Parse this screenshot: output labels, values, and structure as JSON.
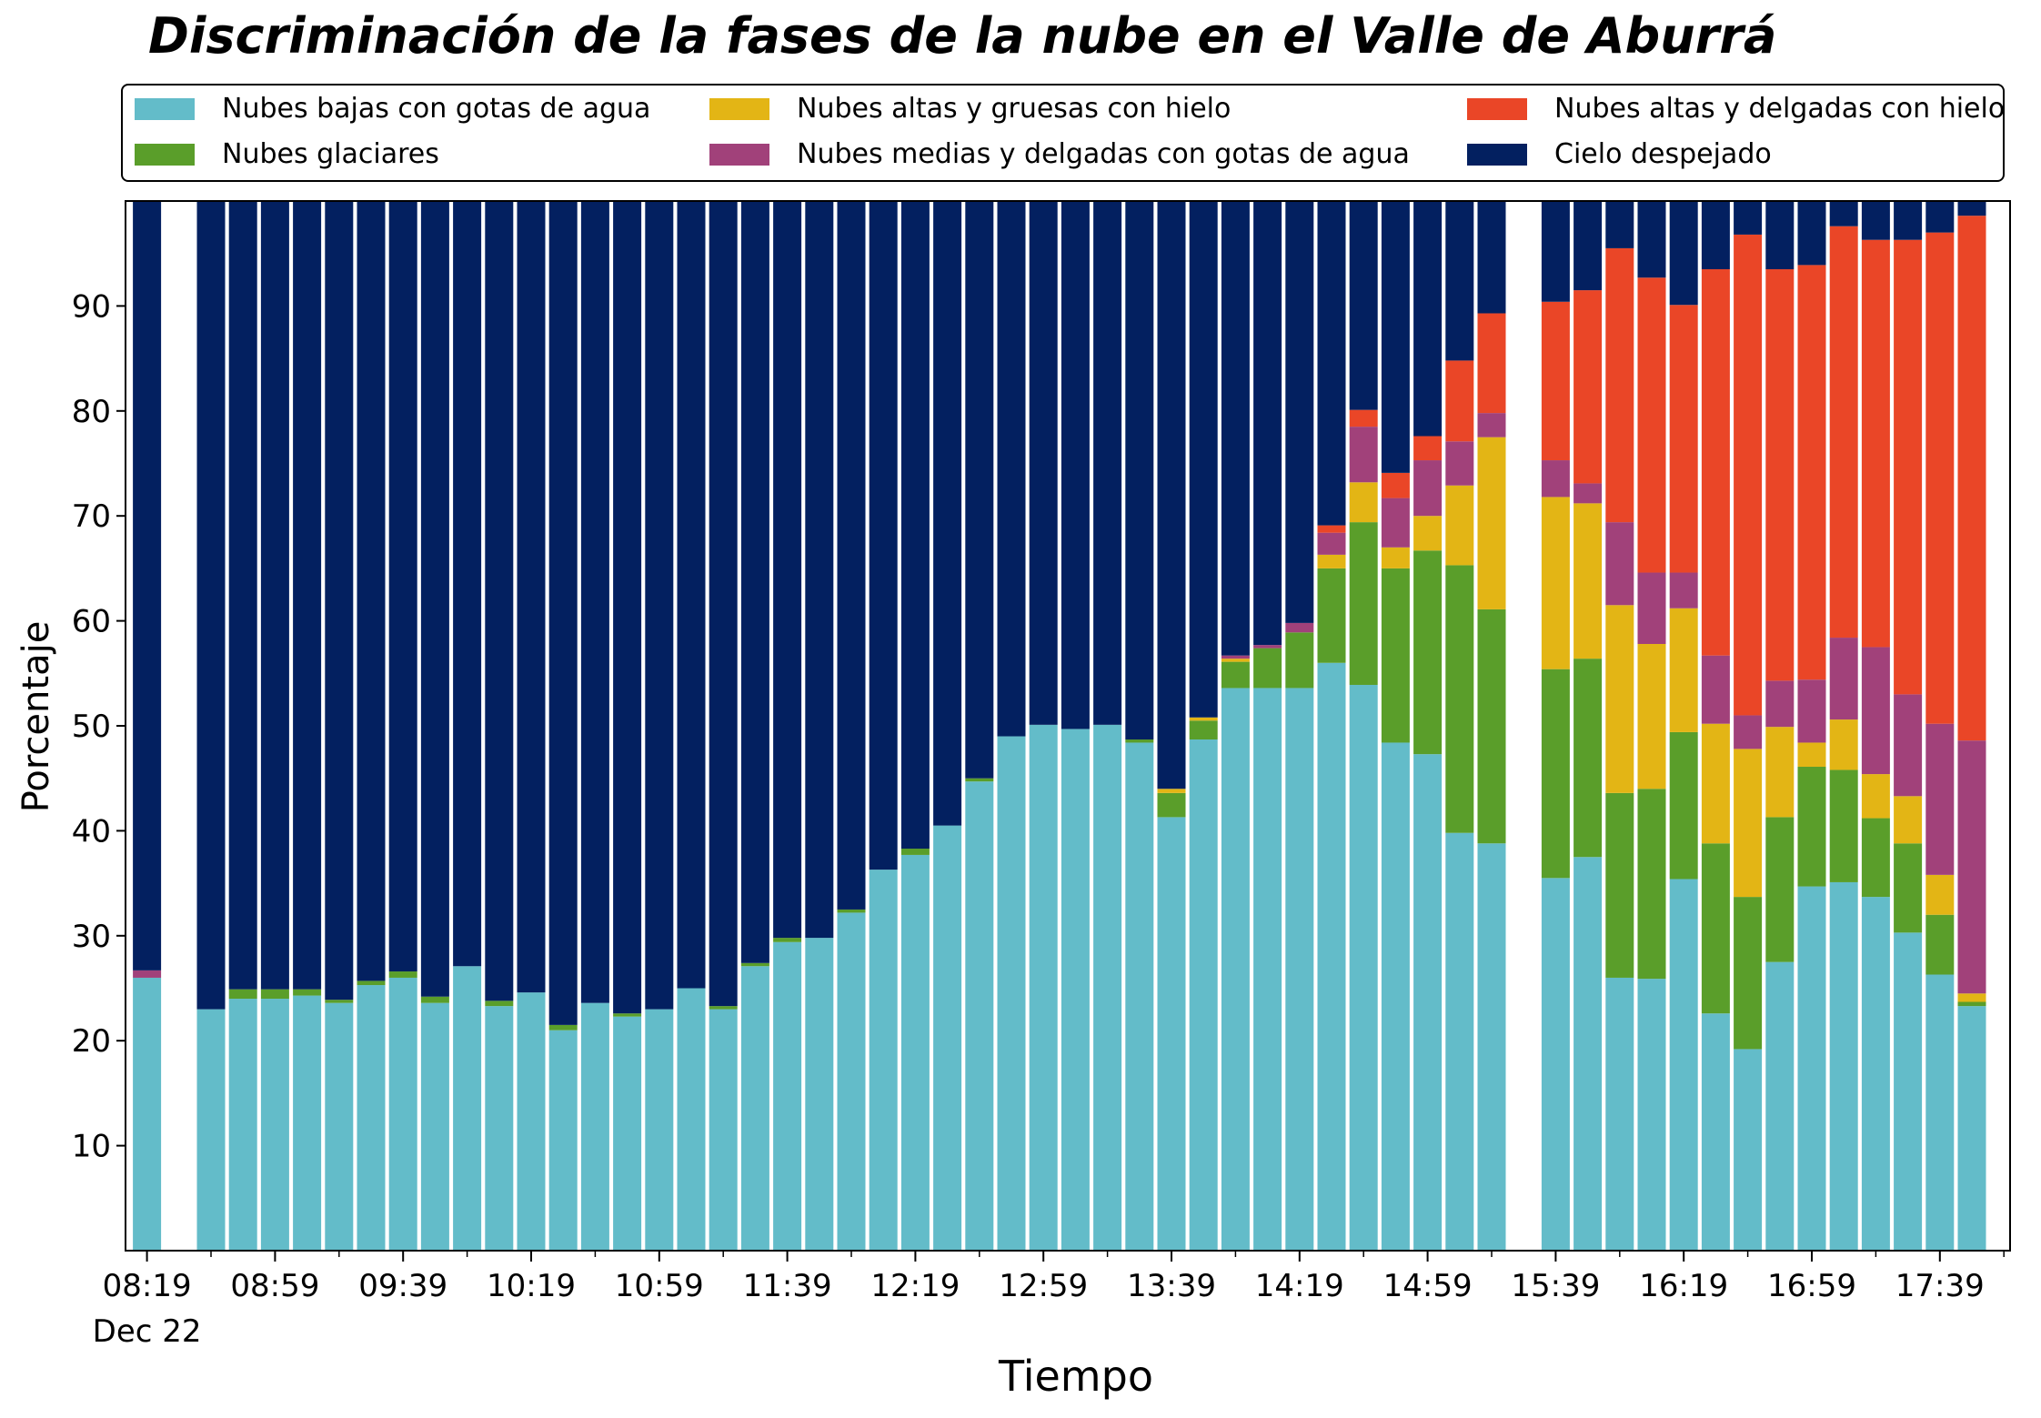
{
  "chart_data": {
    "type": "bar",
    "stacked": true,
    "title": "Discriminación de la fases de la nube en el Valle de Aburrá",
    "xlabel": "Tiempo",
    "ylabel": "Porcentaje",
    "ylim": [
      0,
      100
    ],
    "yticks": [
      10,
      20,
      30,
      40,
      50,
      60,
      70,
      80,
      90
    ],
    "grid": false,
    "legend_position": "top",
    "x_interval_minutes": 10,
    "x_ticks": [
      {
        "time": "08:19",
        "label": "08:19",
        "sublabel": "Dec 22"
      },
      {
        "time": "08:59",
        "label": "08:59"
      },
      {
        "time": "09:39",
        "label": "09:39"
      },
      {
        "time": "10:19",
        "label": "10:19"
      },
      {
        "time": "10:59",
        "label": "10:59"
      },
      {
        "time": "11:39",
        "label": "11:39"
      },
      {
        "time": "12:19",
        "label": "12:19"
      },
      {
        "time": "12:59",
        "label": "12:59"
      },
      {
        "time": "13:39",
        "label": "13:39"
      },
      {
        "time": "14:19",
        "label": "14:19"
      },
      {
        "time": "14:59",
        "label": "14:59"
      },
      {
        "time": "15:39",
        "label": "15:39"
      },
      {
        "time": "16:19",
        "label": "16:19"
      },
      {
        "time": "16:59",
        "label": "16:59"
      },
      {
        "time": "17:39",
        "label": "17:39"
      }
    ],
    "x": [
      "08:19",
      "08:29",
      "08:39",
      "08:49",
      "08:59",
      "09:09",
      "09:19",
      "09:29",
      "09:39",
      "09:49",
      "09:59",
      "10:09",
      "10:19",
      "10:29",
      "10:39",
      "10:49",
      "10:59",
      "11:09",
      "11:19",
      "11:29",
      "11:39",
      "11:49",
      "11:59",
      "12:09",
      "12:19",
      "12:29",
      "12:39",
      "12:49",
      "12:59",
      "13:09",
      "13:19",
      "13:29",
      "13:39",
      "13:49",
      "13:59",
      "14:09",
      "14:19",
      "14:29",
      "14:39",
      "14:49",
      "14:59",
      "15:09",
      "15:19",
      "15:29",
      "15:39",
      "15:49",
      "15:59",
      "16:09",
      "16:19",
      "16:29",
      "16:39",
      "16:49",
      "16:59",
      "17:09",
      "17:19",
      "17:29",
      "17:39",
      "17:49"
    ],
    "series": [
      {
        "name": "Nubes bajas con gotas de agua",
        "color": "#63bcc9",
        "values": [
          26.0,
          null,
          23.0,
          24.0,
          24.0,
          24.3,
          23.6,
          25.3,
          26.0,
          23.6,
          27.1,
          23.3,
          24.6,
          21.0,
          23.6,
          22.3,
          23.0,
          25.0,
          23.0,
          27.1,
          29.4,
          29.8,
          32.2,
          36.3,
          37.7,
          40.5,
          44.7,
          49.0,
          50.1,
          49.7,
          50.1,
          48.4,
          41.3,
          48.7,
          53.6,
          53.6,
          53.6,
          56.0,
          53.9,
          48.4,
          47.3,
          39.8,
          38.8,
          null,
          35.5,
          37.5,
          26.0,
          25.9,
          35.4,
          22.6,
          19.2,
          27.5,
          34.7,
          35.1,
          33.7,
          30.3,
          26.3,
          23.3
        ]
      },
      {
        "name": "Nubes glaciares",
        "color": "#5a9e2a",
        "values": [
          0,
          null,
          0,
          0.9,
          0.9,
          0.6,
          0.3,
          0.4,
          0.6,
          0.6,
          0,
          0.5,
          0,
          0.5,
          0,
          0.3,
          0,
          0,
          0.3,
          0.3,
          0.4,
          0,
          0.3,
          0,
          0.6,
          0,
          0.3,
          0,
          0,
          0,
          0,
          0.3,
          2.3,
          1.8,
          2.5,
          3.8,
          5.3,
          9.0,
          15.5,
          16.6,
          19.4,
          25.5,
          22.3,
          null,
          19.9,
          18.9,
          17.6,
          18.1,
          14.0,
          16.2,
          14.5,
          13.8,
          11.4,
          10.7,
          7.5,
          8.5,
          5.7,
          0.4
        ]
      },
      {
        "name": "Nubes altas y gruesas con hielo",
        "color": "#e3b515",
        "values": [
          0,
          null,
          0,
          0,
          0,
          0,
          0,
          0,
          0,
          0,
          0,
          0,
          0,
          0,
          0,
          0,
          0,
          0,
          0,
          0,
          0,
          0,
          0,
          0,
          0,
          0,
          0,
          0,
          0,
          0,
          0,
          0,
          0.4,
          0.3,
          0.3,
          0,
          0,
          1.3,
          3.8,
          2.0,
          3.3,
          7.6,
          16.4,
          null,
          16.4,
          14.8,
          17.9,
          13.8,
          11.8,
          11.4,
          14.1,
          8.6,
          2.3,
          4.8,
          4.2,
          4.5,
          3.8,
          0.8
        ]
      },
      {
        "name": "Nubes medias y delgadas con gotas de agua",
        "color": "#a1417a",
        "values": [
          0.7,
          null,
          0,
          0,
          0,
          0,
          0,
          0,
          0,
          0,
          0,
          0,
          0,
          0,
          0,
          0,
          0,
          0,
          0,
          0,
          0,
          0,
          0,
          0,
          0,
          0,
          0,
          0,
          0,
          0,
          0,
          0,
          0,
          0,
          0.3,
          0.3,
          0.9,
          2.1,
          5.3,
          4.7,
          5.3,
          4.2,
          2.3,
          null,
          3.5,
          1.9,
          7.9,
          6.8,
          3.4,
          6.5,
          3.2,
          4.4,
          6.0,
          7.8,
          12.1,
          9.7,
          14.4,
          24.1
        ]
      },
      {
        "name": "Nubes altas y delgadas con hielo",
        "color": "#ea4627",
        "values": [
          0,
          null,
          0,
          0,
          0,
          0,
          0,
          0,
          0,
          0,
          0,
          0,
          0,
          0,
          0,
          0,
          0,
          0,
          0,
          0,
          0,
          0,
          0,
          0,
          0,
          0,
          0,
          0,
          0,
          0,
          0,
          0,
          0,
          0,
          0,
          0,
          0,
          0.7,
          1.6,
          2.4,
          2.3,
          7.7,
          9.5,
          null,
          15.1,
          18.4,
          26.1,
          28.1,
          25.5,
          36.8,
          45.8,
          39.2,
          39.5,
          39.2,
          38.8,
          43.3,
          46.8,
          50.0
        ]
      },
      {
        "name": "Cielo despejado",
        "color": "#032060",
        "values": [
          73.3,
          null,
          77.0,
          75.1,
          75.1,
          75.1,
          76.1,
          74.3,
          73.4,
          75.8,
          72.9,
          76.2,
          75.4,
          78.5,
          76.4,
          77.4,
          77.0,
          75.0,
          76.7,
          72.6,
          70.2,
          70.2,
          67.5,
          63.7,
          61.7,
          59.5,
          55.0,
          51.0,
          49.9,
          50.3,
          49.9,
          51.3,
          56.0,
          49.2,
          43.3,
          42.3,
          40.2,
          30.9,
          19.9,
          25.9,
          22.4,
          15.2,
          10.7,
          null,
          9.6,
          8.5,
          4.5,
          7.3,
          9.9,
          6.5,
          3.2,
          6.5,
          6.1,
          2.4,
          3.7,
          3.7,
          3.0,
          1.4
        ]
      }
    ]
  }
}
